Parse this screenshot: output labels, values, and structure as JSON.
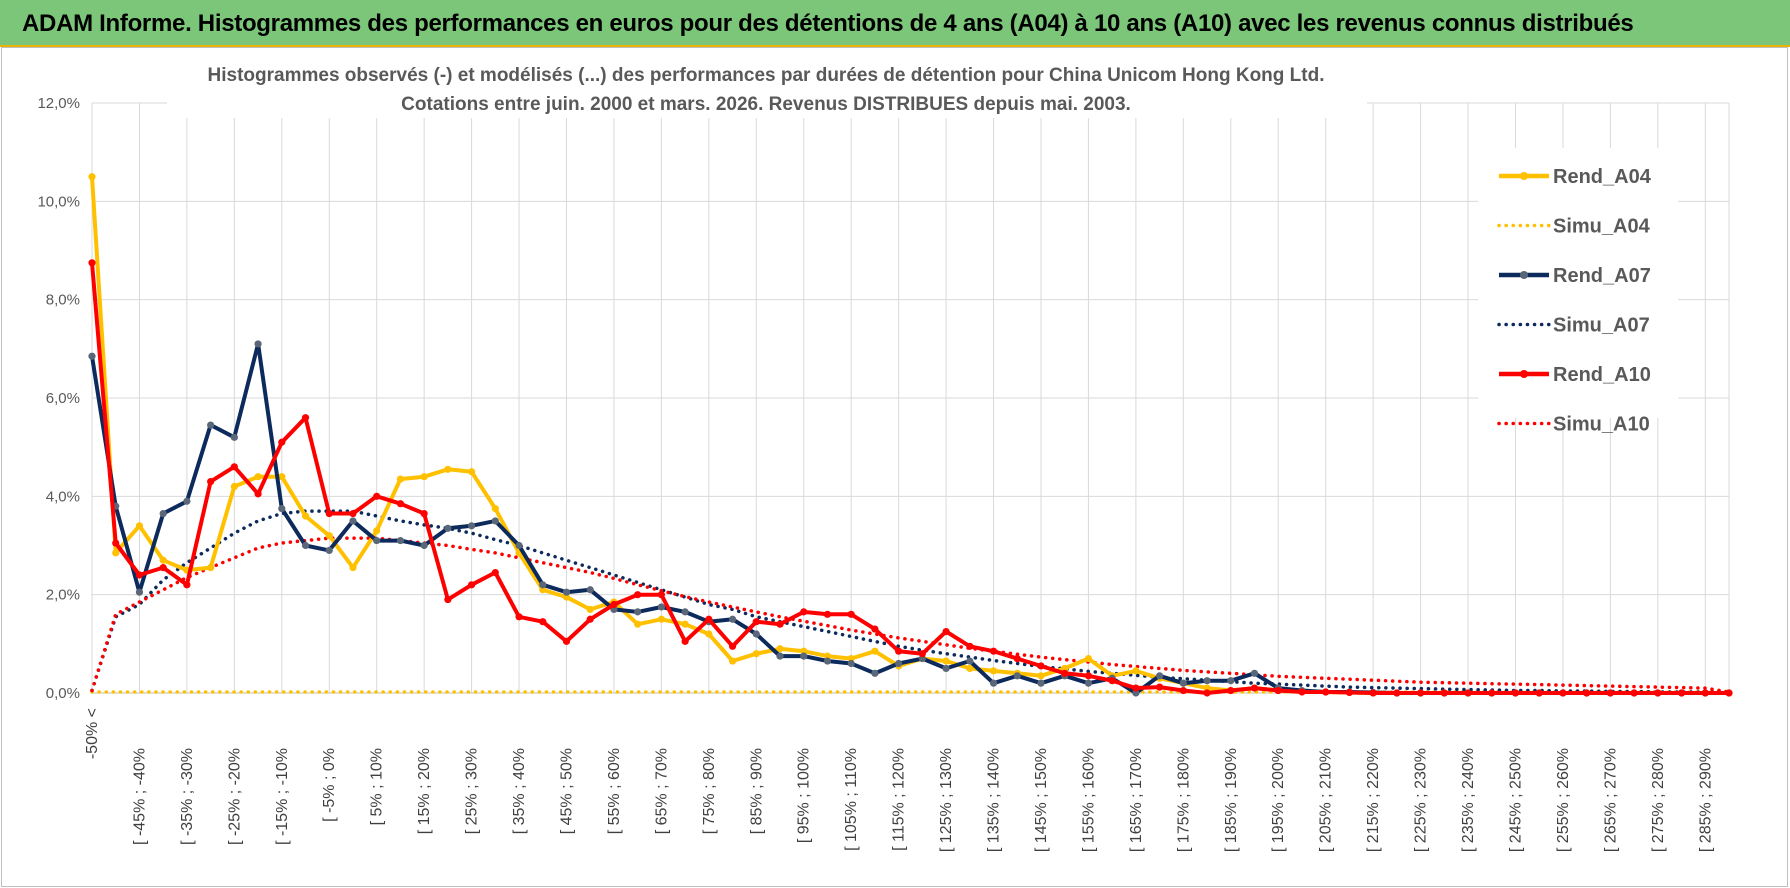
{
  "banner": {
    "title": "ADAM Informe. Histogrammes des performances en euros pour des détentions de 4 ans (A04) à 10 ans (A10) avec les revenus connus distribués"
  },
  "chart_data": {
    "type": "line",
    "title_line1": "Histogrammes observés (-) et modélisés (...) des performances par durées de détention pour China Unicom Hong Kong Ltd.",
    "title_line2": "Cotations entre juin. 2000 et mars. 2026.  Revenus DISTRIBUES depuis mai. 2003.",
    "xlabel": "",
    "ylabel": "",
    "ylim": [
      0,
      12
    ],
    "y_ticks": [
      {
        "value": 0,
        "label": "0,0%"
      },
      {
        "value": 2,
        "label": "2,0%"
      },
      {
        "value": 4,
        "label": "4,0%"
      },
      {
        "value": 6,
        "label": "6,0%"
      },
      {
        "value": 8,
        "label": "8,0%"
      },
      {
        "value": 10,
        "label": "10,0%"
      },
      {
        "value": 12,
        "label": "12,0%"
      }
    ],
    "x_tick_labels": [
      "-50% <",
      "[ -45% ; -40%",
      "[ -35% ; -30%",
      "[ -25% ; -20%",
      "[ -15% ; -10%",
      "[ -5% ; 0%",
      "[ 5% ; 10%",
      "[ 15% ; 20%",
      "[ 25% ; 30%",
      "[ 35% ; 40%",
      "[ 45% ; 50%",
      "[ 55% ; 60%",
      "[ 65% ; 70%",
      "[ 75% ; 80%",
      "[ 85% ; 90%",
      "[ 95% ; 100%",
      "[ 105% ; 110%",
      "[ 115% ; 120%",
      "[ 125% ; 130%",
      "[ 135% ; 140%",
      "[ 145% ; 150%",
      "[ 155% ; 160%",
      "[ 165% ; 170%",
      "[ 175% ; 180%",
      "[ 185% ; 190%",
      "[ 195% ; 200%",
      "[ 205% ; 210%",
      "[ 215% ; 220%",
      "[ 225% ; 230%",
      "[ 235% ; 240%",
      "[ 245% ; 250%",
      "[ 255% ; 260%",
      "[ 265% ; 270%",
      "[ 275% ; 280%",
      "[ 285% ; 290%"
    ],
    "num_points": 70,
    "legend_position": "right",
    "series": [
      {
        "name": "Rend_A04",
        "color": "#ffc000",
        "style": "solid",
        "markers": true,
        "values": [
          10.5,
          2.85,
          3.4,
          2.7,
          2.5,
          2.55,
          4.2,
          4.4,
          4.4,
          3.6,
          3.2,
          2.55,
          3.3,
          4.35,
          4.4,
          4.55,
          4.5,
          3.75,
          2.85,
          2.1,
          1.95,
          1.7,
          1.85,
          1.4,
          1.5,
          1.4,
          1.2,
          0.65,
          0.8,
          0.9,
          0.85,
          0.75,
          0.7,
          0.85,
          0.55,
          0.7,
          0.65,
          0.5,
          0.45,
          0.4,
          0.35,
          0.5,
          0.7,
          0.35,
          0.45,
          0.3,
          0.2,
          0.1,
          0.05,
          0.1,
          0.05,
          0.03,
          0.02,
          0.01,
          0,
          0,
          0,
          0,
          0,
          0,
          0,
          0,
          0,
          0,
          0,
          0,
          0,
          0,
          0,
          0
        ]
      },
      {
        "name": "Simu_A04",
        "color": "#ffc000",
        "style": "dotted",
        "markers": false,
        "values": [
          0.02,
          0.02,
          0.02,
          0.02,
          0.02,
          0.02,
          0.02,
          0.02,
          0.02,
          0.02,
          0.02,
          0.02,
          0.02,
          0.02,
          0.02,
          0.02,
          0.02,
          0.02,
          0.02,
          0.02,
          0.02,
          0.02,
          0.02,
          0.02,
          0.02,
          0.02,
          0.02,
          0.02,
          0.02,
          0.02,
          0.02,
          0.02,
          0.02,
          0.02,
          0.02,
          0.02,
          0.02,
          0.02,
          0.02,
          0.02,
          0.02,
          0.02,
          0.02,
          0.02,
          0.02,
          0.02,
          0.02,
          0.02,
          0.02,
          0.02,
          0.02,
          0.02,
          0.02,
          0.02,
          0.02,
          0.02,
          0.02,
          0.02,
          0.02,
          0.02,
          0.02,
          0.02,
          0.02,
          0.02,
          0.02,
          0.02,
          0.02,
          0.02,
          0.02,
          0.02
        ]
      },
      {
        "name": "Rend_A07",
        "color": "#0d2a5c",
        "style": "solid",
        "markers": true,
        "values": [
          6.85,
          3.8,
          2.05,
          3.65,
          3.9,
          5.45,
          5.2,
          7.1,
          3.75,
          3.0,
          2.9,
          3.5,
          3.1,
          3.1,
          3.0,
          3.35,
          3.4,
          3.5,
          3.0,
          2.2,
          2.05,
          2.1,
          1.7,
          1.65,
          1.75,
          1.65,
          1.45,
          1.5,
          1.2,
          0.75,
          0.75,
          0.65,
          0.6,
          0.4,
          0.6,
          0.7,
          0.5,
          0.65,
          0.2,
          0.35,
          0.2,
          0.35,
          0.2,
          0.3,
          0.0,
          0.35,
          0.2,
          0.25,
          0.25,
          0.4,
          0.1,
          0.05,
          0.02,
          0.02,
          0.01,
          0,
          0,
          0,
          0,
          0,
          0,
          0,
          0,
          0,
          0,
          0,
          0,
          0,
          0,
          0
        ]
      },
      {
        "name": "Simu_A07",
        "color": "#0d2a5c",
        "style": "dotted",
        "markers": false,
        "values": [
          0.05,
          1.55,
          1.8,
          2.3,
          2.65,
          2.95,
          3.25,
          3.5,
          3.65,
          3.7,
          3.7,
          3.7,
          3.6,
          3.5,
          3.42,
          3.35,
          3.25,
          3.12,
          3.0,
          2.85,
          2.7,
          2.55,
          2.4,
          2.25,
          2.1,
          1.95,
          1.8,
          1.7,
          1.55,
          1.45,
          1.35,
          1.25,
          1.15,
          1.05,
          0.95,
          0.87,
          0.8,
          0.73,
          0.66,
          0.6,
          0.54,
          0.49,
          0.44,
          0.4,
          0.36,
          0.32,
          0.29,
          0.26,
          0.23,
          0.2,
          0.18,
          0.16,
          0.14,
          0.12,
          0.11,
          0.1,
          0.09,
          0.08,
          0.07,
          0.06,
          0.05,
          0.05,
          0.04,
          0.04,
          0.03,
          0.03,
          0.02,
          0.02,
          0.02,
          0.02
        ]
      },
      {
        "name": "Rend_A10",
        "color": "#ff0000",
        "style": "solid",
        "markers": true,
        "values": [
          8.75,
          3.05,
          2.4,
          2.55,
          2.2,
          4.3,
          4.6,
          4.05,
          5.1,
          5.6,
          3.65,
          3.65,
          4.0,
          3.85,
          3.65,
          1.9,
          2.2,
          2.45,
          1.55,
          1.45,
          1.05,
          1.5,
          1.8,
          2.0,
          2.0,
          1.05,
          1.5,
          0.95,
          1.45,
          1.4,
          1.65,
          1.6,
          1.6,
          1.3,
          0.85,
          0.8,
          1.25,
          0.95,
          0.85,
          0.7,
          0.55,
          0.4,
          0.35,
          0.25,
          0.1,
          0.12,
          0.05,
          0.0,
          0.05,
          0.1,
          0.05,
          0.02,
          0.02,
          0.01,
          0,
          0,
          0,
          0,
          0,
          0,
          0,
          0,
          0,
          0,
          0,
          0,
          0,
          0,
          0,
          0
        ]
      },
      {
        "name": "Simu_A10",
        "color": "#ff0000",
        "style": "dotted",
        "markers": false,
        "values": [
          0.05,
          1.6,
          1.85,
          2.1,
          2.35,
          2.55,
          2.75,
          2.95,
          3.05,
          3.1,
          3.15,
          3.15,
          3.15,
          3.1,
          3.05,
          3.0,
          2.92,
          2.85,
          2.75,
          2.65,
          2.55,
          2.45,
          2.33,
          2.2,
          2.08,
          1.96,
          1.85,
          1.75,
          1.65,
          1.55,
          1.46,
          1.37,
          1.28,
          1.2,
          1.12,
          1.05,
          0.98,
          0.91,
          0.85,
          0.79,
          0.73,
          0.68,
          0.63,
          0.58,
          0.54,
          0.5,
          0.46,
          0.43,
          0.4,
          0.37,
          0.34,
          0.32,
          0.3,
          0.28,
          0.26,
          0.24,
          0.22,
          0.21,
          0.2,
          0.19,
          0.18,
          0.17,
          0.16,
          0.15,
          0.14,
          0.13,
          0.12,
          0.11,
          0.1,
          0.02
        ]
      }
    ]
  }
}
